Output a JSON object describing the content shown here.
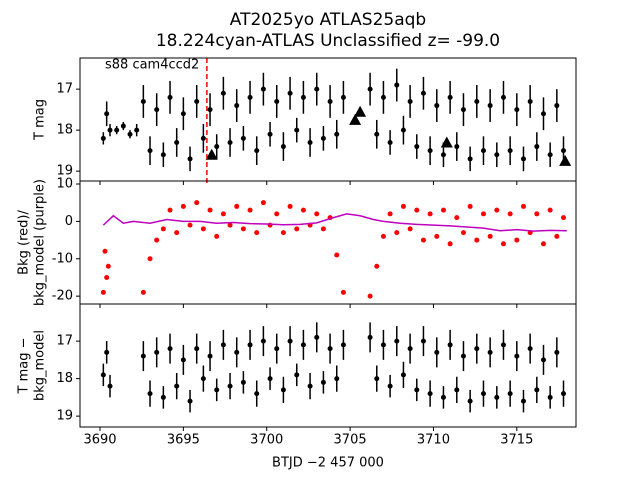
{
  "chart_data": [
    {
      "type": "scatter",
      "title": [
        "AT2025yo  ATLAS25aqb",
        "18.224cyan-ATLAS Unclassified z= -99.0"
      ],
      "annotation": "s88 cam4ccd2",
      "ylabel": [
        "T mag"
      ],
      "xlim": [
        3688.8,
        3718.55
      ],
      "xticks": [
        3690,
        3695,
        3700,
        3705,
        3710,
        3715
      ],
      "ylim": [
        19.24,
        16.24
      ],
      "yticks": [
        17,
        18,
        19
      ],
      "vline": {
        "x": 3696.41,
        "color": "#ff0000"
      },
      "series": [
        {
          "color": "#000000",
          "marker": "circle",
          "x": [
            3690.2,
            3690.4,
            3690.6,
            3691.0,
            3691.4,
            3691.8,
            3692.2,
            3692.6,
            3693.0,
            3693.4,
            3693.8,
            3694.2,
            3694.6,
            3695.0,
            3695.4,
            3695.8,
            3696.2,
            3696.6,
            3697.0,
            3697.4,
            3697.8,
            3698.2,
            3698.6,
            3699.0,
            3699.4,
            3699.8,
            3700.2,
            3700.6,
            3701.0,
            3701.4,
            3701.8,
            3702.2,
            3702.6,
            3703.0,
            3703.4,
            3703.8,
            3704.2,
            3704.6,
            3706.2,
            3706.6,
            3707.0,
            3707.4,
            3707.8,
            3708.2,
            3708.6,
            3709.0,
            3709.4,
            3709.8,
            3710.2,
            3710.6,
            3711.0,
            3711.4,
            3711.8,
            3712.2,
            3712.6,
            3713.0,
            3713.4,
            3713.8,
            3714.2,
            3714.6,
            3715.0,
            3715.4,
            3715.8,
            3716.2,
            3716.6,
            3717.0,
            3717.4,
            3717.8
          ],
          "values": [
            18.2,
            17.6,
            18.0,
            18.0,
            17.9,
            18.1,
            18.0,
            17.3,
            18.5,
            17.5,
            18.6,
            17.2,
            18.3,
            17.6,
            18.7,
            17.3,
            18.2,
            17.5,
            18.4,
            17.1,
            18.3,
            17.4,
            18.2,
            17.2,
            18.5,
            17.0,
            18.1,
            17.3,
            18.4,
            17.1,
            18.0,
            17.2,
            18.3,
            17.0,
            18.2,
            17.3,
            18.1,
            17.2,
            17.0,
            18.1,
            17.2,
            18.3,
            16.9,
            18.0,
            17.3,
            18.4,
            17.1,
            18.5,
            17.4,
            18.6,
            17.2,
            18.4,
            17.5,
            18.7,
            17.3,
            18.5,
            17.4,
            18.6,
            17.2,
            18.5,
            17.5,
            18.7,
            17.3,
            18.4,
            17.6,
            18.6,
            17.4,
            18.5
          ],
          "errors": [
            0.15,
            0.3,
            0.15,
            0.1,
            0.1,
            0.1,
            0.15,
            0.4,
            0.35,
            0.4,
            0.3,
            0.4,
            0.35,
            0.4,
            0.3,
            0.4,
            0.35,
            0.4,
            0.3,
            0.4,
            0.35,
            0.4,
            0.3,
            0.4,
            0.35,
            0.4,
            0.3,
            0.4,
            0.35,
            0.4,
            0.3,
            0.4,
            0.35,
            0.4,
            0.3,
            0.4,
            0.35,
            0.4,
            0.4,
            0.35,
            0.4,
            0.3,
            0.4,
            0.35,
            0.4,
            0.3,
            0.4,
            0.35,
            0.4,
            0.3,
            0.4,
            0.35,
            0.4,
            0.3,
            0.4,
            0.35,
            0.4,
            0.3,
            0.4,
            0.35,
            0.4,
            0.3,
            0.4,
            0.35,
            0.4,
            0.3,
            0.4,
            0.35
          ]
        },
        {
          "color": "#000000",
          "marker": "triangle",
          "x": [
            3696.7,
            3705.3,
            3705.6,
            3710.8,
            3717.9
          ],
          "values": [
            18.6,
            17.75,
            17.55,
            18.3,
            18.75
          ]
        }
      ]
    },
    {
      "type": "scatter",
      "ylabel": [
        "Bkg (red)/",
        "bkg_model (purple)"
      ],
      "xlim": [
        3688.8,
        3718.55
      ],
      "xticks": [
        3690,
        3695,
        3700,
        3705,
        3710,
        3715
      ],
      "ylim": [
        -22.1,
        10.8
      ],
      "yticks": [
        -20,
        -10,
        0,
        10
      ],
      "series": [
        {
          "color": "#ff0000",
          "marker": "circle",
          "x": [
            3690.2,
            3690.3,
            3690.4,
            3690.5,
            3692.6,
            3693.0,
            3693.4,
            3693.8,
            3694.2,
            3694.6,
            3695.0,
            3695.4,
            3695.8,
            3696.2,
            3696.6,
            3697.0,
            3697.4,
            3697.8,
            3698.2,
            3698.6,
            3699.0,
            3699.4,
            3699.8,
            3700.2,
            3700.6,
            3701.0,
            3701.4,
            3701.8,
            3702.2,
            3702.6,
            3703.0,
            3703.4,
            3703.8,
            3704.2,
            3704.6,
            3706.2,
            3706.6,
            3707.0,
            3707.4,
            3707.8,
            3708.2,
            3708.6,
            3709.0,
            3709.4,
            3709.8,
            3710.2,
            3710.6,
            3711.0,
            3711.4,
            3711.8,
            3712.2,
            3712.6,
            3713.0,
            3713.4,
            3713.8,
            3714.2,
            3714.6,
            3715.0,
            3715.4,
            3715.8,
            3716.2,
            3716.6,
            3717.0,
            3717.4,
            3717.8
          ],
          "values": [
            -19,
            -8,
            -15,
            -12,
            -19,
            -10,
            -5,
            -2,
            3,
            -3,
            4,
            -1,
            5,
            -2,
            3,
            -4,
            2,
            -1,
            4,
            -2,
            3,
            -3,
            5,
            -1,
            2,
            -3,
            4,
            -2,
            3,
            -1,
            2,
            -2,
            1,
            -9,
            -19,
            -20,
            -12,
            -4,
            2,
            -3,
            4,
            -2,
            3,
            -5,
            2,
            -4,
            3,
            -6,
            1,
            -3,
            4,
            -5,
            2,
            -4,
            3,
            -6,
            2,
            -5,
            4,
            -3,
            2,
            -6,
            3,
            -4,
            1
          ]
        },
        {
          "color": "#bf00bf",
          "marker": "line",
          "x": [
            3690.2,
            3690.8,
            3691.4,
            3692.0,
            3693.0,
            3694.0,
            3695.0,
            3696.0,
            3697.0,
            3698.0,
            3699.0,
            3700.0,
            3701.0,
            3702.0,
            3703.0,
            3704.0,
            3704.8,
            3705.6,
            3706.4,
            3707.0,
            3708.0,
            3709.0,
            3710.0,
            3711.0,
            3712.0,
            3713.0,
            3714.0,
            3715.0,
            3716.0,
            3717.0,
            3718.0
          ],
          "values": [
            -1,
            1.5,
            -0.5,
            0,
            -0.5,
            0.5,
            0,
            0,
            -0.5,
            -0.3,
            -0.6,
            -0.7,
            -0.9,
            -0.8,
            -0.4,
            1,
            2,
            1.5,
            0.5,
            0,
            -0.5,
            -0.8,
            -1,
            -1.2,
            -1.5,
            -1.8,
            -2.5,
            -2.2,
            -2.6,
            -2.4,
            -2.5
          ]
        }
      ]
    },
    {
      "type": "scatter",
      "ylabel": [
        "T mag −",
        "bkg_model"
      ],
      "xlabel": "BTJD −2 457 000",
      "xlim": [
        3688.8,
        3718.55
      ],
      "xticks": [
        3690,
        3695,
        3700,
        3705,
        3710,
        3715
      ],
      "ylim": [
        19.29,
        16.01
      ],
      "yticks": [
        17,
        18,
        19
      ],
      "series": [
        {
          "color": "#000000",
          "marker": "circle",
          "x": [
            3690.2,
            3690.4,
            3690.6,
            3692.6,
            3693.0,
            3693.4,
            3693.8,
            3694.2,
            3694.6,
            3695.0,
            3695.4,
            3695.8,
            3696.2,
            3696.6,
            3697.0,
            3697.4,
            3697.8,
            3698.2,
            3698.6,
            3699.0,
            3699.4,
            3699.8,
            3700.2,
            3700.6,
            3701.0,
            3701.4,
            3701.8,
            3702.2,
            3702.6,
            3703.0,
            3703.4,
            3703.8,
            3704.2,
            3704.6,
            3706.2,
            3706.6,
            3707.0,
            3707.4,
            3707.8,
            3708.2,
            3708.6,
            3709.0,
            3709.4,
            3709.8,
            3710.2,
            3710.6,
            3711.0,
            3711.4,
            3711.8,
            3712.2,
            3712.6,
            3713.0,
            3713.4,
            3713.8,
            3714.2,
            3714.6,
            3715.0,
            3715.4,
            3715.8,
            3716.2,
            3716.6,
            3717.0,
            3717.4,
            3717.8
          ],
          "values": [
            17.9,
            17.3,
            18.2,
            17.4,
            18.4,
            17.3,
            18.5,
            17.2,
            18.2,
            17.5,
            18.6,
            17.2,
            18.0,
            17.4,
            18.3,
            17.1,
            18.2,
            17.3,
            18.1,
            17.1,
            18.4,
            17.0,
            18.0,
            17.2,
            18.3,
            17.0,
            17.9,
            17.1,
            18.2,
            16.9,
            18.1,
            17.2,
            18.0,
            17.1,
            16.9,
            18.0,
            17.1,
            18.2,
            17.0,
            17.9,
            17.2,
            18.3,
            17.0,
            18.4,
            17.3,
            18.5,
            17.1,
            18.3,
            17.4,
            18.6,
            17.2,
            18.4,
            17.3,
            18.5,
            17.1,
            18.4,
            17.4,
            18.6,
            17.2,
            18.3,
            17.5,
            18.5,
            17.3,
            18.4
          ],
          "errors": [
            0.3,
            0.3,
            0.3,
            0.4,
            0.35,
            0.4,
            0.3,
            0.4,
            0.35,
            0.4,
            0.3,
            0.4,
            0.35,
            0.4,
            0.3,
            0.4,
            0.35,
            0.4,
            0.3,
            0.4,
            0.35,
            0.4,
            0.3,
            0.4,
            0.35,
            0.4,
            0.3,
            0.4,
            0.35,
            0.4,
            0.3,
            0.4,
            0.35,
            0.4,
            0.4,
            0.35,
            0.4,
            0.3,
            0.4,
            0.35,
            0.4,
            0.3,
            0.4,
            0.35,
            0.4,
            0.3,
            0.4,
            0.35,
            0.4,
            0.3,
            0.4,
            0.35,
            0.4,
            0.3,
            0.4,
            0.35,
            0.4,
            0.3,
            0.4,
            0.35,
            0.4,
            0.3,
            0.4,
            0.35
          ]
        }
      ]
    }
  ]
}
